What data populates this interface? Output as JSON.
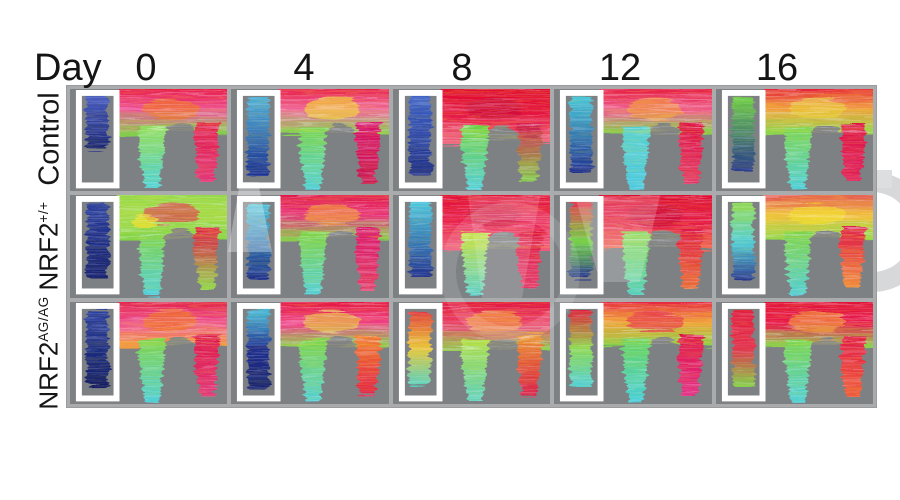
{
  "figure": {
    "day_label": "Day",
    "days": [
      "0",
      "4",
      "8",
      "12",
      "16"
    ],
    "rows": [
      {
        "key": "control",
        "label_base": "Control",
        "label_sup": ""
      },
      {
        "key": "nrf2-wt",
        "label_base": "NRF2",
        "label_sup": "+/+"
      },
      {
        "key": "nrf2-ag",
        "label_base": "NRF2",
        "label_sup": "AG/AG"
      }
    ],
    "grid": {
      "columns": 5,
      "rows": 3
    }
  },
  "colors": {
    "cell_bg": "#7e8184",
    "grid_border": "#a9abad",
    "roi_frame": "#ffffff",
    "text": "#141414",
    "watermark": "#d6d8da"
  },
  "cells": [
    {
      "row": "control",
      "day": "0",
      "torso": [
        "#e6123a",
        "#ee4f96",
        "#7ed34a"
      ],
      "patch": "#f07820",
      "legL": [
        "#8fdc5a",
        "#4ad0d8"
      ],
      "legR": [
        "#e01848",
        "#e23a7d"
      ],
      "roi": [
        "#4358c2",
        "#18246f"
      ],
      "limbH": 0.62,
      "torsoH": 46
    },
    {
      "row": "control",
      "day": "4",
      "torso": [
        "#e6123a",
        "#f0689b",
        "#80d64c"
      ],
      "patch": "#f2df2e",
      "legL": [
        "#79d44e",
        "#4fd0da"
      ],
      "legR": [
        "#d8156a",
        "#c81a50"
      ],
      "roi": [
        "#52b2d8",
        "#1b2f8e"
      ],
      "limbH": 0.93,
      "torsoH": 46
    },
    {
      "row": "control",
      "day": "8",
      "torso": [
        "#df0f2e",
        "#e41340",
        "#ef6f86"
      ],
      "patch": "#c80f3c",
      "legL": [
        "#6fd047",
        "#52cfd8"
      ],
      "legR": [
        "#d41550",
        "#7ed34a"
      ],
      "roi": [
        "#3f63c6",
        "#1d2d85"
      ],
      "limbH": 0.93,
      "torsoH": 56
    },
    {
      "row": "control",
      "day": "12",
      "torso": [
        "#e51238",
        "#ee5b8e",
        "#7ed34a"
      ],
      "patch": "#f2a03a",
      "legL": [
        "#57d0cf",
        "#49c8e0"
      ],
      "legR": [
        "#dd1444",
        "#e23a6a"
      ],
      "roi": [
        "#49c8d8",
        "#20308f"
      ],
      "limbH": 0.9,
      "torsoH": 46
    },
    {
      "row": "control",
      "day": "16",
      "torso": [
        "#e41337",
        "#f0a23c",
        "#86d84e"
      ],
      "patch": "#e8d23a",
      "legL": [
        "#7ad44d",
        "#4ecfda"
      ],
      "legR": [
        "#dd1444",
        "#e0205f"
      ],
      "roi": [
        "#6fd047",
        "#23338f"
      ],
      "limbH": 0.9,
      "torsoH": 46
    },
    {
      "row": "nrf2-wt",
      "day": "0",
      "torso": [
        "#93d84c",
        "#a4da4a",
        "#7ed34a"
      ],
      "patch": "#e62450",
      "patch2": "#f2df2e",
      "legL": [
        "#7ed34a",
        "#4ecfda"
      ],
      "legR": [
        "#dd1746",
        "#8fd84e"
      ],
      "roi": [
        "#2b3f9f",
        "#141f6e"
      ],
      "limbH": 0.9,
      "torsoH": 46
    },
    {
      "row": "nrf2-wt",
      "day": "4",
      "torso": [
        "#e01a46",
        "#e8327c",
        "#80d64c"
      ],
      "patch": "#f2a03a",
      "legL": [
        "#7ed34a",
        "#52cfd8"
      ],
      "legR": [
        "#d8156a",
        "#e23a6a"
      ],
      "roi": [
        "#4fc6dc",
        "#1b2b86"
      ],
      "limbH": 0.92,
      "torsoH": 46
    },
    {
      "row": "nrf2-wt",
      "day": "8",
      "torso": [
        "#e01236",
        "#e8174c",
        "#ef5d7c"
      ],
      "patch": "#c80f3c",
      "legL": [
        "#bede44",
        "#5ed0c8"
      ],
      "legR": [
        "#dd1444",
        "#e23a6a"
      ],
      "roi": [
        "#4fc6dc",
        "#202f8e"
      ],
      "limbH": 0.9,
      "torsoH": 56
    },
    {
      "row": "nrf2-wt",
      "day": "12",
      "torso": [
        "#dc0f30",
        "#e41342",
        "#ef6f5a"
      ],
      "patch": "#c80f3c",
      "legL": [
        "#7ed34a",
        "#56d0c2"
      ],
      "legR": [
        "#dd1444",
        "#e9703a"
      ],
      "roi": [
        "#e03a4e",
        "#6fd047",
        "#24348f"
      ],
      "limbH": 0.9,
      "torsoH": 56
    },
    {
      "row": "nrf2-wt",
      "day": "16",
      "torso": [
        "#e24656",
        "#f0c03c",
        "#8ad84e"
      ],
      "patch": "#f2df2e",
      "legL": [
        "#7ed34a",
        "#52cfd8"
      ],
      "legR": [
        "#dd1848",
        "#f0903c"
      ],
      "roi": [
        "#8fd84e",
        "#52cfd8",
        "#26368f"
      ],
      "limbH": 0.9,
      "torsoH": 46
    },
    {
      "row": "nrf2-ag",
      "day": "0",
      "torso": [
        "#e01a3c",
        "#ee4f93",
        "#f0a03a"
      ],
      "patch": "#f07820",
      "legL": [
        "#7ed34a",
        "#4ecfda"
      ],
      "legR": [
        "#dd1444",
        "#e23a7d"
      ],
      "roi": [
        "#2b3f9f",
        "#141f66"
      ],
      "limbH": 0.9,
      "torsoH": 46
    },
    {
      "row": "nrf2-ag",
      "day": "4",
      "torso": [
        "#e21136",
        "#ee3f86",
        "#84d84f"
      ],
      "patch": "#e8d23a",
      "legL": [
        "#7ed34a",
        "#52cfd8"
      ],
      "legR": [
        "#ef7a2e",
        "#e01a46"
      ],
      "roi": [
        "#46b8d8",
        "#202f8e",
        "#18246f"
      ],
      "limbH": 0.92,
      "torsoH": 46
    },
    {
      "row": "nrf2-ag",
      "day": "8",
      "torso": [
        "#e01236",
        "#ea3d6c",
        "#8ad84e"
      ],
      "patch": "#f2a03a",
      "legL": [
        "#aadd46",
        "#5ad0c0"
      ],
      "legR": [
        "#e8902e",
        "#d81a4a"
      ],
      "roi": [
        "#e0343f",
        "#e8c53a",
        "#56d0c2"
      ],
      "limbH": 0.9,
      "torsoH": 50
    },
    {
      "row": "nrf2-ag",
      "day": "12",
      "torso": [
        "#e41940",
        "#f0a03a",
        "#7ed34a"
      ],
      "patch": "#e62450",
      "legL": [
        "#66d35c",
        "#48cfdc"
      ],
      "legR": [
        "#dd1444",
        "#e2308a"
      ],
      "roi": [
        "#e01a3c",
        "#8fd84e",
        "#4ecfda"
      ],
      "limbH": 0.9,
      "torsoH": 46
    },
    {
      "row": "nrf2-ag",
      "day": "16",
      "torso": [
        "#e01134",
        "#e8174c",
        "#8ad84e"
      ],
      "patch": "#f2a03a",
      "legL": [
        "#7ad44d",
        "#4ecfda"
      ],
      "legR": [
        "#e01a46",
        "#ef5d3a"
      ],
      "roi": [
        "#e01a3c",
        "#e33050",
        "#7ed34a"
      ],
      "limbH": 0.9,
      "torsoH": 46
    }
  ]
}
